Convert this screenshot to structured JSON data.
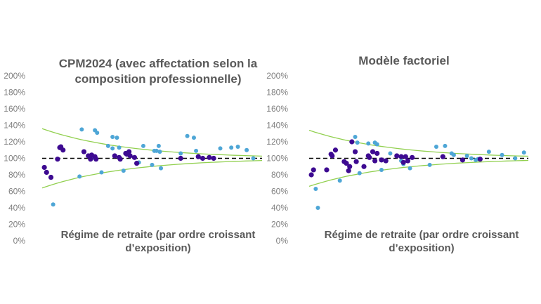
{
  "colors": {
    "dark_points": "#3d0a91",
    "light_points": "#4ea6d6",
    "band": "#92d050",
    "reference": "#000000",
    "text": "#595959",
    "ticks": "#7f7f7f"
  },
  "chart_data": [
    {
      "type": "scatter",
      "title": "CPM2024 (avec affectation selon la composition professionnelle)",
      "xlabel": "Régime de retraite (par ordre croissant d’exposition)",
      "ylabel": "",
      "ylim": [
        0,
        2
      ],
      "yticks": [
        "0%",
        "20%",
        "40%",
        "60%",
        "80%",
        "100%",
        "120%",
        "140%",
        "160%",
        "180%",
        "200%"
      ],
      "xlim": [
        0,
        100
      ],
      "reference_line": {
        "y": 1.0,
        "style": "dashed"
      },
      "band": {
        "upper_start": 1.36,
        "lower_start": 0.64,
        "end": 1.0
      },
      "series": [
        {
          "color": "dark",
          "points": [
            [
              1,
              0.89
            ],
            [
              2,
              0.83
            ],
            [
              4,
              0.77
            ],
            [
              7,
              0.99
            ],
            [
              8,
              1.13
            ],
            [
              8.5,
              1.14
            ],
            [
              9.5,
              1.1
            ],
            [
              19,
              1.08
            ],
            [
              21,
              1.03
            ],
            [
              22,
              0.99
            ],
            [
              22.5,
              1.04
            ],
            [
              24,
              1.02
            ],
            [
              24.5,
              0.99
            ],
            [
              33,
              1.03
            ],
            [
              35,
              1.01
            ],
            [
              35.5,
              0.99
            ],
            [
              38,
              1.06
            ],
            [
              38.5,
              1.05
            ],
            [
              39.5,
              1.08
            ],
            [
              40,
              1.03
            ],
            [
              42,
              1.01
            ],
            [
              43,
              0.94
            ],
            [
              63,
              1.0
            ],
            [
              71,
              1.02
            ],
            [
              73,
              1.0
            ],
            [
              76,
              1.01
            ],
            [
              78,
              1.0
            ]
          ]
        },
        {
          "color": "light",
          "points": [
            [
              5,
              0.44
            ],
            [
              17,
              0.78
            ],
            [
              18,
              1.35
            ],
            [
              22.5,
              1.0
            ],
            [
              24,
              1.34
            ],
            [
              25,
              1.31
            ],
            [
              27,
              0.83
            ],
            [
              30,
              1.15
            ],
            [
              32,
              1.12
            ],
            [
              32,
              1.26
            ],
            [
              34,
              1.25
            ],
            [
              35,
              1.13
            ],
            [
              37,
              0.85
            ],
            [
              44,
              0.95
            ],
            [
              46,
              1.15
            ],
            [
              50,
              0.92
            ],
            [
              51,
              1.09
            ],
            [
              52,
              1.09
            ],
            [
              53,
              1.15
            ],
            [
              53.5,
              1.08
            ],
            [
              54,
              0.88
            ],
            [
              63,
              1.06
            ],
            [
              66,
              1.27
            ],
            [
              69,
              1.25
            ],
            [
              70,
              1.09
            ],
            [
              81,
              1.12
            ],
            [
              86,
              1.13
            ],
            [
              89,
              1.14
            ],
            [
              93,
              1.1
            ],
            [
              96,
              1.0
            ]
          ]
        }
      ]
    },
    {
      "type": "scatter",
      "title": "Modèle factoriel",
      "xlabel": "Régime de retraite (par ordre croissant d’exposition)",
      "ylabel": "",
      "ylim": [
        0,
        2
      ],
      "yticks": [
        "0%",
        "20%",
        "40%",
        "60%",
        "80%",
        "100%",
        "120%",
        "140%",
        "160%",
        "180%",
        "200%"
      ],
      "xlim": [
        0,
        100
      ],
      "reference_line": {
        "y": 1.0,
        "style": "dashed"
      },
      "band": {
        "upper_start": 1.34,
        "lower_start": 0.66,
        "end": 1.0
      },
      "series": [
        {
          "color": "dark",
          "points": [
            [
              1,
              0.8
            ],
            [
              2,
              0.86
            ],
            [
              8,
              0.86
            ],
            [
              10,
              1.05
            ],
            [
              10.5,
              1.03
            ],
            [
              12,
              1.1
            ],
            [
              16,
              0.96
            ],
            [
              17,
              0.94
            ],
            [
              18,
              0.85
            ],
            [
              18.5,
              0.9
            ],
            [
              19.5,
              1.2
            ],
            [
              21,
              1.08
            ],
            [
              21.5,
              0.96
            ],
            [
              25,
              0.9
            ],
            [
              27,
              1.03
            ],
            [
              27.5,
              1.01
            ],
            [
              29,
              1.08
            ],
            [
              30,
              0.97
            ],
            [
              31,
              1.06
            ],
            [
              33,
              0.98
            ],
            [
              35,
              0.97
            ],
            [
              40,
              1.03
            ],
            [
              42,
              1.02
            ],
            [
              43,
              0.95
            ],
            [
              44,
              1.02
            ],
            [
              45,
              0.97
            ],
            [
              47,
              1.01
            ],
            [
              61,
              1.02
            ],
            [
              70,
              0.98
            ],
            [
              78,
              0.99
            ]
          ]
        },
        {
          "color": "light",
          "points": [
            [
              3,
              0.63
            ],
            [
              4,
              0.4
            ],
            [
              14,
              0.73
            ],
            [
              21,
              1.26
            ],
            [
              22,
              1.19
            ],
            [
              23,
              0.82
            ],
            [
              27,
              1.18
            ],
            [
              30,
              1.19
            ],
            [
              31,
              1.17
            ],
            [
              33,
              0.86
            ],
            [
              37,
              1.06
            ],
            [
              42,
              0.97
            ],
            [
              43,
              0.93
            ],
            [
              46,
              0.88
            ],
            [
              55,
              0.92
            ],
            [
              58,
              1.14
            ],
            [
              62,
              1.15
            ],
            [
              65,
              1.06
            ],
            [
              66,
              1.04
            ],
            [
              72,
              1.03
            ],
            [
              74,
              1.0
            ],
            [
              76,
              0.98
            ],
            [
              77,
              0.99
            ],
            [
              82,
              1.08
            ],
            [
              88,
              1.04
            ],
            [
              94,
              1.0
            ],
            [
              98,
              1.07
            ]
          ]
        }
      ]
    }
  ]
}
